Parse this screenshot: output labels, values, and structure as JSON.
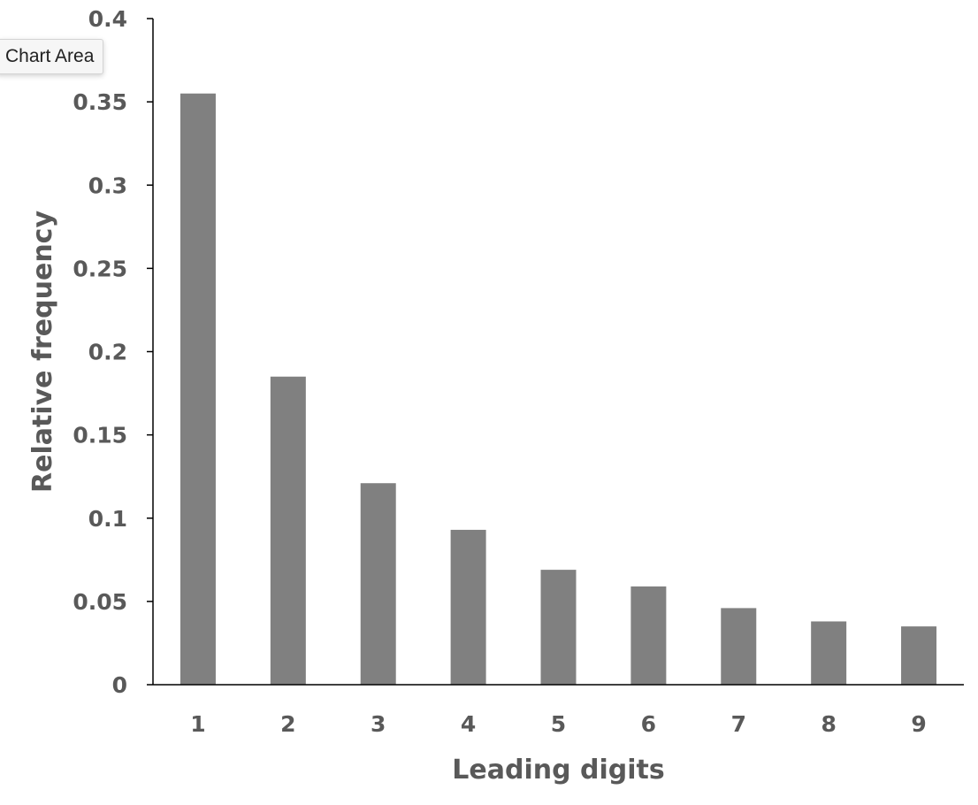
{
  "tooltip": {
    "label": "Chart Area"
  },
  "colors": {
    "bar": "#808080",
    "axis": "#000000",
    "text": "#595959"
  },
  "chart_data": {
    "type": "bar",
    "categories": [
      "1",
      "2",
      "3",
      "4",
      "5",
      "6",
      "7",
      "8",
      "9"
    ],
    "values": [
      0.355,
      0.185,
      0.121,
      0.093,
      0.069,
      0.059,
      0.046,
      0.038,
      0.035
    ],
    "xlabel": "Leading digits",
    "ylabel": "Relative frequency",
    "ylim": [
      0,
      0.4
    ],
    "yticks": [
      "0",
      "0.05",
      "0.1",
      "0.15",
      "0.2",
      "0.25",
      "0.3",
      "0.35",
      "0.4"
    ],
    "grid": false,
    "legend": "none"
  }
}
